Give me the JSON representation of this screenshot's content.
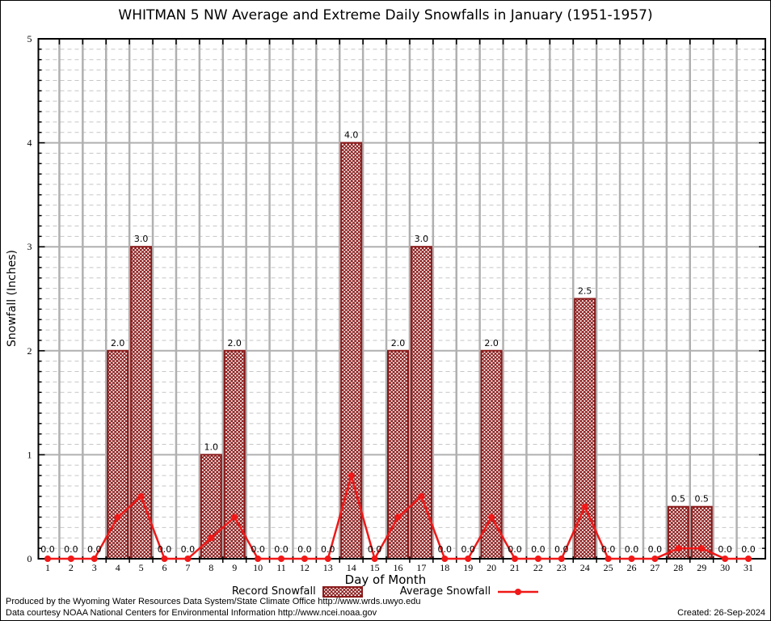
{
  "chart_data": {
    "type": "bar",
    "title": "WHITMAN 5 NW Average and Extreme Daily Snowfalls in January (1951-1957)",
    "xlabel": "Day of Month",
    "ylabel": "Snowfall (Inches)",
    "categories": [
      1,
      2,
      3,
      4,
      5,
      6,
      7,
      8,
      9,
      10,
      11,
      12,
      13,
      14,
      15,
      16,
      17,
      18,
      19,
      20,
      21,
      22,
      23,
      24,
      25,
      26,
      27,
      28,
      29,
      30,
      31
    ],
    "series": [
      {
        "name": "Record Snowfall",
        "kind": "bar",
        "values": [
          0.0,
          0.0,
          0.0,
          2.0,
          3.0,
          0.0,
          0.0,
          1.0,
          2.0,
          0.0,
          0.0,
          0.0,
          0.0,
          4.0,
          0.0,
          2.0,
          3.0,
          0.0,
          0.0,
          2.0,
          0.0,
          0.0,
          0.0,
          2.5,
          0.0,
          0.0,
          0.0,
          0.5,
          0.5,
          0.0,
          0.0
        ]
      },
      {
        "name": "Average Snowfall",
        "kind": "line",
        "values": [
          0.0,
          0.0,
          0.0,
          0.4,
          0.6,
          0.0,
          0.0,
          0.2,
          0.4,
          0.0,
          0.0,
          0.0,
          0.0,
          0.8,
          0.0,
          0.4,
          0.6,
          0.0,
          0.0,
          0.4,
          0.0,
          0.0,
          0.0,
          0.5,
          0.0,
          0.0,
          0.0,
          0.1,
          0.1,
          0.0,
          0.0
        ]
      }
    ],
    "ylim": [
      0,
      5
    ],
    "yticks": [
      0,
      1,
      2,
      3,
      4,
      5
    ],
    "y_minor_step": 0.1,
    "grid": true,
    "bar_value_labels": true,
    "legend_position": "bottom",
    "colors": {
      "record_dark_red": "#8b1a1a",
      "average_line_red": "#f01818",
      "major_grid": "#b0b0b0",
      "minor_grid": "#c6c6c6",
      "axis": "#000000"
    }
  },
  "legend": {
    "record_label": "Record Snowfall",
    "average_label": "Average Snowfall"
  },
  "footer": {
    "line1": "Produced by the Wyoming Water Resources Data System/State Climate Office http://www.wrds.uwyo.edu",
    "line2": "Data courtesy NOAA National Centers for Environmental Information http://www.ncei.noaa.gov",
    "created": "Created: 26-Sep-2024"
  }
}
